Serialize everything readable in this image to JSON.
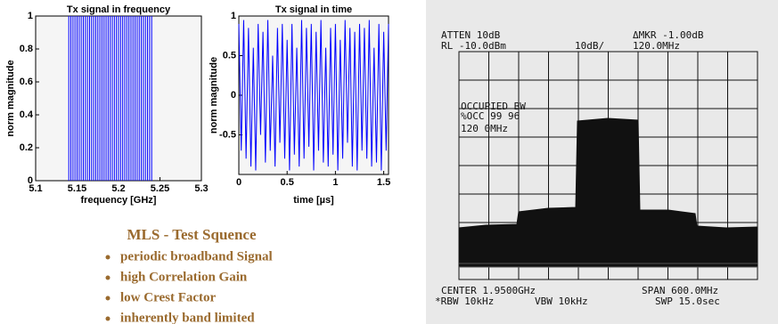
{
  "chart_data": [
    {
      "type": "stem",
      "title": "Tx signal in frequency",
      "x_label": "frequency [GHz]",
      "y_label": "norm magnitude",
      "color": "#0000ff",
      "x": [
        5.14,
        5.1425,
        5.145,
        5.1475,
        5.15,
        5.1525,
        5.155,
        5.1575,
        5.16,
        5.1625,
        5.165,
        5.1675,
        5.17,
        5.1725,
        5.175,
        5.1775,
        5.18,
        5.1825,
        5.185,
        5.1875,
        5.19,
        5.1925,
        5.195,
        5.1975,
        5.2,
        5.2025,
        5.205,
        5.2075,
        5.21,
        5.2125,
        5.215,
        5.2175,
        5.22,
        5.2225,
        5.225,
        5.2275,
        5.23,
        5.2325,
        5.235,
        5.2375,
        5.24
      ],
      "values": [
        1,
        1,
        1,
        1,
        1,
        1,
        1,
        1,
        1,
        1,
        1,
        1,
        1,
        1,
        1,
        1,
        1,
        1,
        1,
        1,
        1,
        1,
        1,
        1,
        1,
        1,
        1,
        1,
        1,
        1,
        1,
        1,
        1,
        1,
        1,
        1,
        1,
        1,
        1,
        1,
        1
      ],
      "xlim": [
        5.1,
        5.3
      ],
      "xticks": [
        5.1,
        5.15,
        5.2,
        5.25,
        5.3
      ],
      "ylim": [
        0,
        1
      ],
      "yticks": [
        0,
        0.2,
        0.4,
        0.6,
        0.8,
        1
      ]
    },
    {
      "type": "line",
      "title": "Tx signal in time",
      "x_label": "time [µs]",
      "y_label": "norm magnitude",
      "color": "#0000ff",
      "x": [
        0,
        0.025,
        0.05,
        0.075,
        0.1,
        0.125,
        0.15,
        0.175,
        0.2,
        0.225,
        0.25,
        0.275,
        0.3,
        0.325,
        0.35,
        0.375,
        0.4,
        0.425,
        0.45,
        0.475,
        0.5,
        0.525,
        0.55,
        0.575,
        0.6,
        0.625,
        0.65,
        0.675,
        0.7,
        0.725,
        0.75,
        0.775,
        0.8,
        0.825,
        0.85,
        0.875,
        0.9,
        0.925,
        0.95,
        0.975,
        1,
        1.025,
        1.05,
        1.075,
        1.1,
        1.125,
        1.15,
        1.175,
        1.2,
        1.225,
        1.25,
        1.275,
        1.3,
        1.325,
        1.35,
        1.375,
        1.4,
        1.425,
        1.45,
        1.475,
        1.5,
        1.525,
        1.55
      ],
      "values": [
        0.9,
        -0.7,
        0.95,
        -0.8,
        0.85,
        -0.9,
        0.6,
        -0.95,
        0.9,
        -0.5,
        0.8,
        -0.85,
        0.95,
        -0.7,
        0.5,
        -0.9,
        0.85,
        -0.6,
        0.9,
        -0.8,
        0.7,
        -0.95,
        0.9,
        -0.75,
        0.6,
        -0.9,
        0.95,
        -0.8,
        0.85,
        -0.65,
        0.9,
        -0.95,
        0.8,
        -0.7,
        0.95,
        -0.85,
        0.6,
        -0.9,
        0.85,
        -0.75,
        0.9,
        -0.95,
        0.7,
        -0.8,
        0.95,
        -0.6,
        0.85,
        -0.9,
        0.8,
        -0.95,
        0.9,
        -0.7,
        0.85,
        -0.8,
        0.95,
        -0.9,
        0.6,
        -0.85,
        0.9,
        -0.95,
        0.8,
        -0.7,
        0.9
      ],
      "xlim": [
        0,
        1.55
      ],
      "xticks": [
        0,
        0.5,
        1,
        1.5
      ],
      "ylim": [
        -1,
        1
      ],
      "yticks": [
        -0.5,
        0,
        0.5,
        1
      ]
    }
  ],
  "slide": {
    "heading": "MLS - Test Squence",
    "bullets": [
      "periodic broadband Signal",
      "high Correlation Gain",
      "low Crest Factor",
      "inherently band limited"
    ]
  },
  "analyzer": {
    "atten": "ATTEN 10dB",
    "ref_level": "RL -10.0dBm",
    "scale": "10dB/",
    "marker": "ΔMKR -1.00dB",
    "marker_freq": "120.0MHz",
    "occupied_bw": "OCCUPIED BW",
    "occ_percent": "%OCC 99 96",
    "occ_bw": "120 0MHz",
    "center": "CENTER 1.9500GHz",
    "span": "SPAN 600.0MHz",
    "rbw": "*RBW 10kHz",
    "vbw": "VBW 10kHz",
    "sweep": "SWP 15.0sec"
  }
}
